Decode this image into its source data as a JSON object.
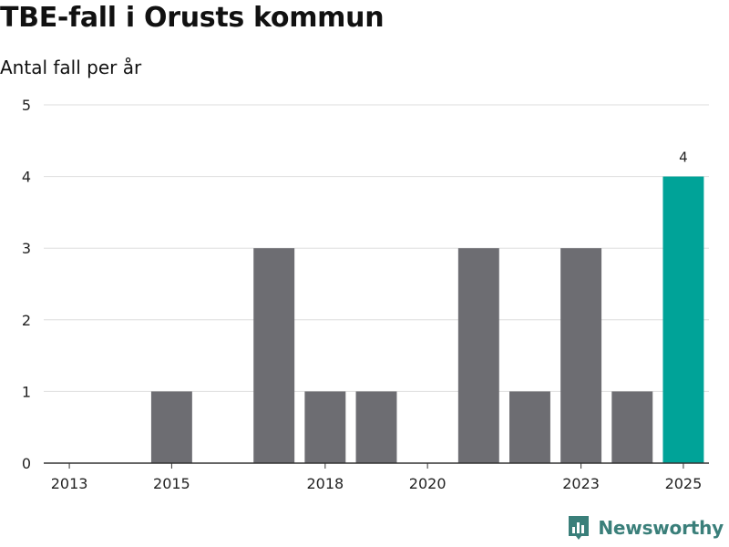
{
  "header": {
    "title": "TBE-fall i Orusts kommun",
    "subtitle": "Antal fall per år"
  },
  "brand": {
    "name": "Newsworthy",
    "icon": "newsworthy-logo-icon",
    "color": "#3a7f7a"
  },
  "chart_data": {
    "type": "bar",
    "title": "TBE-fall i Orusts kommun",
    "subtitle": "Antal fall per år",
    "xlabel": "",
    "ylabel": "",
    "categories": [
      "2013",
      "2014",
      "2015",
      "2016",
      "2017",
      "2018",
      "2019",
      "2020",
      "2021",
      "2022",
      "2023",
      "2024",
      "2025"
    ],
    "values": [
      0,
      0,
      1,
      0,
      3,
      1,
      1,
      0,
      3,
      1,
      3,
      1,
      4
    ],
    "x_tick_labels": [
      "2013",
      "2015",
      "2018",
      "2020",
      "2023",
      "2025"
    ],
    "ylim": [
      0,
      5
    ],
    "y_ticks": [
      0,
      1,
      2,
      3,
      4,
      5
    ],
    "grid": true,
    "legend": "none",
    "bar_color": "#6d6d72",
    "highlight_color": "#00a398",
    "highlight_category": "2025",
    "data_labels": [
      {
        "category": "2025",
        "value": 4
      }
    ]
  }
}
